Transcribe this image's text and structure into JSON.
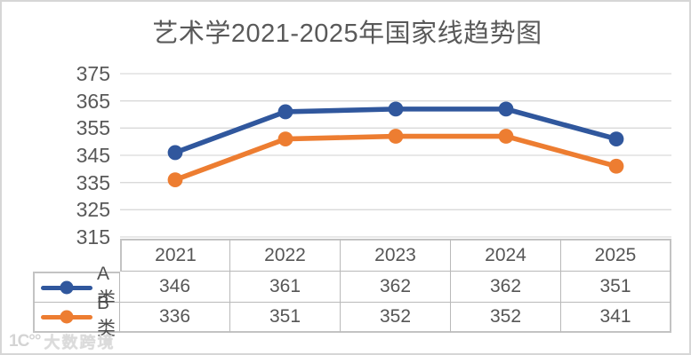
{
  "title": "艺术学2021-2025年国家线趋势图",
  "watermark": {
    "logo_text": "1C°°",
    "text": "大数跨境"
  },
  "chart_data": {
    "type": "line",
    "title": "艺术学2021-2025年国家线趋势图",
    "categories": [
      "2021",
      "2022",
      "2023",
      "2024",
      "2025"
    ],
    "series": [
      {
        "name": "A类",
        "color": "#30579D",
        "values": [
          346,
          361,
          362,
          362,
          351
        ]
      },
      {
        "name": "B类",
        "color": "#ED7D31",
        "values": [
          336,
          351,
          352,
          352,
          341
        ]
      }
    ],
    "ylim": [
      315,
      375
    ],
    "ytick_step": 10,
    "yticks": [
      375,
      365,
      355,
      345,
      335,
      325,
      315
    ],
    "grid": true,
    "gridline_color": "#d9d9d9",
    "marker": "circle",
    "legend_position": "table-left"
  }
}
